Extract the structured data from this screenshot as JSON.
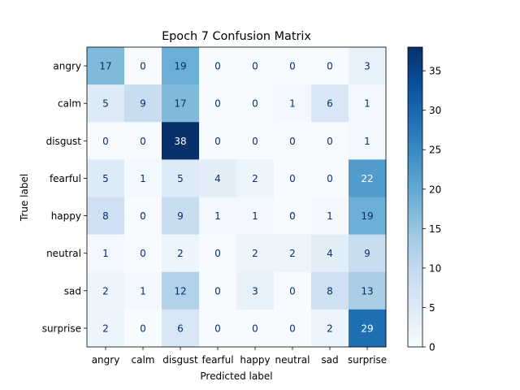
{
  "chart_data": {
    "type": "heatmap",
    "title": "Epoch 7 Confusion Matrix",
    "xlabel": "Predicted label",
    "ylabel": "True label",
    "x_categories": [
      "angry",
      "calm",
      "disgust",
      "fearful",
      "happy",
      "neutral",
      "sad",
      "surprise"
    ],
    "y_categories": [
      "angry",
      "calm",
      "disgust",
      "fearful",
      "happy",
      "neutral",
      "sad",
      "surprise"
    ],
    "values": [
      [
        17,
        0,
        19,
        0,
        0,
        0,
        0,
        3
      ],
      [
        5,
        9,
        17,
        0,
        0,
        1,
        6,
        1
      ],
      [
        0,
        0,
        38,
        0,
        0,
        0,
        0,
        1
      ],
      [
        5,
        1,
        5,
        4,
        2,
        0,
        0,
        22
      ],
      [
        8,
        0,
        9,
        1,
        1,
        0,
        1,
        19
      ],
      [
        1,
        0,
        2,
        0,
        2,
        2,
        4,
        9
      ],
      [
        2,
        1,
        12,
        0,
        3,
        0,
        8,
        13
      ],
      [
        2,
        0,
        6,
        0,
        0,
        0,
        2,
        29
      ]
    ],
    "colormap": "Blues",
    "vmin": 0,
    "vmax": 38,
    "colorbar_ticks": [
      0,
      5,
      10,
      15,
      20,
      25,
      30,
      35
    ],
    "grid": false
  }
}
